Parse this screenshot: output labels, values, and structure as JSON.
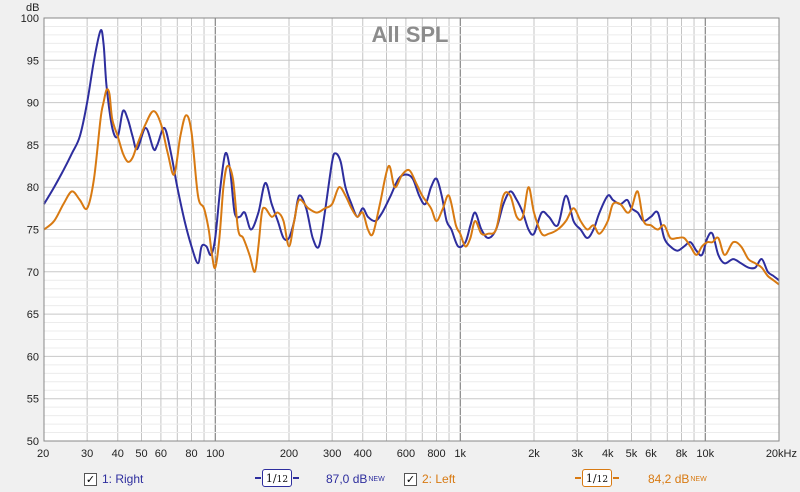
{
  "chart_data": {
    "type": "line",
    "title": "All SPL",
    "ylabel": "dB",
    "xscale": "log",
    "xlim": [
      20,
      20000
    ],
    "ylim": [
      50,
      100
    ],
    "yticks": [
      50,
      55,
      60,
      65,
      70,
      75,
      80,
      85,
      90,
      95,
      100
    ],
    "xticks": [
      {
        "value": 20,
        "label": "20"
      },
      {
        "value": 30,
        "label": "30"
      },
      {
        "value": 40,
        "label": "40"
      },
      {
        "value": 50,
        "label": "50"
      },
      {
        "value": 60,
        "label": "60"
      },
      {
        "value": 80,
        "label": "80"
      },
      {
        "value": 100,
        "label": "100"
      },
      {
        "value": 200,
        "label": "200"
      },
      {
        "value": 300,
        "label": "300"
      },
      {
        "value": 400,
        "label": "400"
      },
      {
        "value": 600,
        "label": "600"
      },
      {
        "value": 800,
        "label": "800"
      },
      {
        "value": 1000,
        "label": "1k"
      },
      {
        "value": 2000,
        "label": "2k"
      },
      {
        "value": 3000,
        "label": "3k"
      },
      {
        "value": 4000,
        "label": "4k"
      },
      {
        "value": 5000,
        "label": "5k"
      },
      {
        "value": 6000,
        "label": "6k"
      },
      {
        "value": 8000,
        "label": "8k"
      },
      {
        "value": 10000,
        "label": "10k"
      },
      {
        "value": 20000,
        "label": "20kHz"
      }
    ],
    "grid": true,
    "series": [
      {
        "name": "1: Right",
        "color": "#2e2e9e",
        "points": [
          [
            20,
            78
          ],
          [
            22,
            80
          ],
          [
            24,
            82
          ],
          [
            26,
            84
          ],
          [
            28,
            86
          ],
          [
            30,
            90
          ],
          [
            32,
            95
          ],
          [
            34,
            98.5
          ],
          [
            35,
            97
          ],
          [
            36,
            92
          ],
          [
            38,
            87
          ],
          [
            40,
            86
          ],
          [
            42,
            89
          ],
          [
            44,
            88
          ],
          [
            46,
            86
          ],
          [
            48,
            84.5
          ],
          [
            52,
            87
          ],
          [
            56,
            84.5
          ],
          [
            58,
            85
          ],
          [
            62,
            87
          ],
          [
            66,
            84
          ],
          [
            70,
            80
          ],
          [
            75,
            76
          ],
          [
            80,
            73
          ],
          [
            85,
            71
          ],
          [
            88,
            73
          ],
          [
            92,
            73
          ],
          [
            96,
            72
          ],
          [
            100,
            74
          ],
          [
            105,
            80
          ],
          [
            110,
            84
          ],
          [
            115,
            82
          ],
          [
            120,
            77
          ],
          [
            126,
            76.5
          ],
          [
            132,
            77
          ],
          [
            140,
            75
          ],
          [
            150,
            77
          ],
          [
            160,
            80.5
          ],
          [
            170,
            78
          ],
          [
            180,
            76
          ],
          [
            190,
            74
          ],
          [
            200,
            74
          ],
          [
            210,
            76
          ],
          [
            220,
            79
          ],
          [
            235,
            77.5
          ],
          [
            250,
            74
          ],
          [
            265,
            73
          ],
          [
            280,
            77
          ],
          [
            300,
            83
          ],
          [
            310,
            84
          ],
          [
            325,
            83
          ],
          [
            340,
            80
          ],
          [
            360,
            78
          ],
          [
            380,
            76.5
          ],
          [
            400,
            77.5
          ],
          [
            420,
            76.5
          ],
          [
            450,
            76
          ],
          [
            480,
            77
          ],
          [
            520,
            79
          ],
          [
            560,
            81
          ],
          [
            600,
            81.5
          ],
          [
            640,
            81
          ],
          [
            680,
            79
          ],
          [
            720,
            78
          ],
          [
            760,
            80
          ],
          [
            800,
            81
          ],
          [
            840,
            79
          ],
          [
            880,
            76
          ],
          [
            920,
            75
          ],
          [
            980,
            73
          ],
          [
            1050,
            73.5
          ],
          [
            1100,
            75.5
          ],
          [
            1150,
            77
          ],
          [
            1220,
            75
          ],
          [
            1300,
            74
          ],
          [
            1400,
            75
          ],
          [
            1500,
            78
          ],
          [
            1600,
            79.5
          ],
          [
            1700,
            78.5
          ],
          [
            1800,
            77
          ],
          [
            1900,
            75
          ],
          [
            2000,
            74.5
          ],
          [
            2150,
            77
          ],
          [
            2300,
            76.5
          ],
          [
            2500,
            75.5
          ],
          [
            2700,
            79
          ],
          [
            2900,
            76
          ],
          [
            3100,
            75
          ],
          [
            3300,
            74
          ],
          [
            3500,
            75
          ],
          [
            3700,
            77
          ],
          [
            4000,
            79
          ],
          [
            4200,
            78.5
          ],
          [
            4500,
            78
          ],
          [
            4800,
            78.5
          ],
          [
            5000,
            77.5
          ],
          [
            5300,
            77
          ],
          [
            5600,
            76
          ],
          [
            6000,
            76.5
          ],
          [
            6400,
            77
          ],
          [
            6800,
            74
          ],
          [
            7200,
            73
          ],
          [
            7700,
            72.5
          ],
          [
            8200,
            73
          ],
          [
            8700,
            73.5
          ],
          [
            9200,
            72.5
          ],
          [
            9700,
            72
          ],
          [
            10200,
            74
          ],
          [
            10700,
            74.5
          ],
          [
            11300,
            72
          ],
          [
            12000,
            71
          ],
          [
            13000,
            71.5
          ],
          [
            14000,
            71
          ],
          [
            15000,
            70.5
          ],
          [
            16000,
            70.5
          ],
          [
            17000,
            71.5
          ],
          [
            18000,
            70
          ],
          [
            19000,
            69.5
          ],
          [
            20000,
            69
          ]
        ]
      },
      {
        "name": "2: Left",
        "color": "#d87a12",
        "points": [
          [
            20,
            75
          ],
          [
            22,
            76
          ],
          [
            24,
            78
          ],
          [
            26,
            79.5
          ],
          [
            28,
            78.5
          ],
          [
            30,
            77.5
          ],
          [
            32,
            81
          ],
          [
            34,
            88
          ],
          [
            35,
            90
          ],
          [
            36,
            91.5
          ],
          [
            37,
            91
          ],
          [
            38,
            88
          ],
          [
            40,
            86
          ],
          [
            42,
            84
          ],
          [
            44,
            83
          ],
          [
            46,
            83.5
          ],
          [
            48,
            85
          ],
          [
            52,
            87.5
          ],
          [
            56,
            89
          ],
          [
            60,
            87.5
          ],
          [
            64,
            84
          ],
          [
            68,
            81.5
          ],
          [
            72,
            86
          ],
          [
            76,
            88.5
          ],
          [
            80,
            86.5
          ],
          [
            85,
            79
          ],
          [
            90,
            77.5
          ],
          [
            94,
            75
          ],
          [
            97,
            72
          ],
          [
            100,
            70.5
          ],
          [
            104,
            74
          ],
          [
            108,
            80
          ],
          [
            112,
            82.5
          ],
          [
            118,
            81
          ],
          [
            124,
            75
          ],
          [
            130,
            74
          ],
          [
            138,
            72
          ],
          [
            145,
            70
          ],
          [
            150,
            73
          ],
          [
            155,
            77
          ],
          [
            160,
            77.5
          ],
          [
            170,
            76.5
          ],
          [
            180,
            77
          ],
          [
            190,
            76
          ],
          [
            200,
            73
          ],
          [
            210,
            76
          ],
          [
            220,
            78.5
          ],
          [
            240,
            77.5
          ],
          [
            260,
            77
          ],
          [
            280,
            77.5
          ],
          [
            300,
            78
          ],
          [
            320,
            80
          ],
          [
            340,
            79
          ],
          [
            360,
            77.5
          ],
          [
            380,
            76.5
          ],
          [
            400,
            77
          ],
          [
            420,
            75
          ],
          [
            440,
            74.5
          ],
          [
            470,
            78
          ],
          [
            510,
            82.5
          ],
          [
            540,
            80
          ],
          [
            580,
            81.5
          ],
          [
            620,
            82
          ],
          [
            660,
            80.5
          ],
          [
            700,
            79
          ],
          [
            760,
            77.5
          ],
          [
            800,
            76
          ],
          [
            850,
            77.5
          ],
          [
            900,
            79
          ],
          [
            960,
            75.5
          ],
          [
            1000,
            74.5
          ],
          [
            1050,
            73
          ],
          [
            1100,
            74
          ],
          [
            1150,
            76
          ],
          [
            1220,
            74.5
          ],
          [
            1300,
            74.5
          ],
          [
            1400,
            75
          ],
          [
            1500,
            79
          ],
          [
            1600,
            79
          ],
          [
            1700,
            76.5
          ],
          [
            1800,
            76.5
          ],
          [
            1900,
            80
          ],
          [
            2000,
            77
          ],
          [
            2150,
            74.5
          ],
          [
            2300,
            74.5
          ],
          [
            2500,
            75
          ],
          [
            2700,
            76
          ],
          [
            2900,
            77.5
          ],
          [
            3100,
            76
          ],
          [
            3300,
            75
          ],
          [
            3500,
            75.5
          ],
          [
            3700,
            74.5
          ],
          [
            4000,
            76
          ],
          [
            4200,
            78
          ],
          [
            4500,
            78
          ],
          [
            4800,
            77
          ],
          [
            5000,
            77.5
          ],
          [
            5300,
            79.5
          ],
          [
            5600,
            76
          ],
          [
            6000,
            75.5
          ],
          [
            6400,
            75
          ],
          [
            6800,
            75.5
          ],
          [
            7200,
            74
          ],
          [
            7700,
            74
          ],
          [
            8200,
            74
          ],
          [
            8700,
            73
          ],
          [
            9200,
            72
          ],
          [
            9700,
            73
          ],
          [
            10200,
            73.5
          ],
          [
            10700,
            73.5
          ],
          [
            11300,
            74
          ],
          [
            12000,
            72
          ],
          [
            13000,
            73.5
          ],
          [
            14000,
            73
          ],
          [
            15000,
            71.5
          ],
          [
            16000,
            71
          ],
          [
            17000,
            70.5
          ],
          [
            18000,
            69.5
          ],
          [
            19000,
            69
          ],
          [
            20000,
            68.5
          ]
        ]
      }
    ]
  },
  "legend": [
    {
      "checkmark": "✓",
      "label": "1: Right",
      "smoothing_num": "1",
      "smoothing_den": "12",
      "spl": "87,0 dB",
      "spl_tag": "NEW",
      "color": "#2e2e9e"
    },
    {
      "checkmark": "✓",
      "label": "2: Left",
      "smoothing_num": "1",
      "smoothing_den": "12",
      "spl": "84,2 dB",
      "spl_tag": "NEW",
      "color": "#d87a12"
    }
  ]
}
